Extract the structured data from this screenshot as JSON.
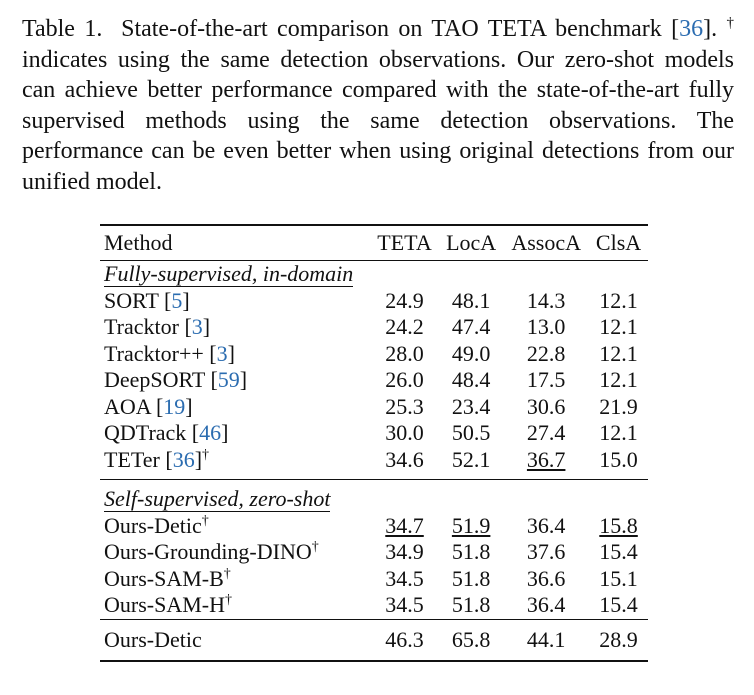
{
  "caption": {
    "label": "Table 1.",
    "text_a": "State-of-the-art comparison on TAO TETA benchmark [",
    "ref": "36",
    "text_b": "].",
    "dagger": "†",
    "text_c": "indicates using the same detection observations. Our zero-shot models can achieve better performance compared with the state-of-the-art fully supervised methods using the same detection observations. The performance can be even better when using original detections from our unified model."
  },
  "table": {
    "headers": [
      "Method",
      "TETA",
      "LocA",
      "AssocA",
      "ClsA"
    ],
    "section1": "Fully-supervised, in-domain",
    "section2": "Self-supervised, zero-shot",
    "rows": [
      {
        "name": "SORT",
        "ref": "5",
        "values": [
          "24.9",
          "48.1",
          "14.3",
          "12.1"
        ]
      },
      {
        "name": "Tracktor",
        "ref": "3",
        "values": [
          "24.2",
          "47.4",
          "13.0",
          "12.1"
        ]
      },
      {
        "name": "Tracktor++",
        "ref": "3",
        "values": [
          "28.0",
          "49.0",
          "22.8",
          "12.1"
        ]
      },
      {
        "name": "DeepSORT",
        "ref": "59",
        "values": [
          "26.0",
          "48.4",
          "17.5",
          "12.1"
        ]
      },
      {
        "name": "AOA",
        "ref": "19",
        "values": [
          "25.3",
          "23.4",
          "30.6",
          "21.9"
        ]
      },
      {
        "name": "QDTrack",
        "ref": "46",
        "values": [
          "30.0",
          "50.5",
          "27.4",
          "12.1"
        ]
      },
      {
        "name": "TETer",
        "ref": "36",
        "dagger": "†",
        "values": [
          "34.6",
          "52.1",
          "36.7",
          "15.0"
        ]
      },
      {
        "name": "Ours-Detic",
        "dagger": "†",
        "values": [
          "34.7",
          "51.9",
          "36.4",
          "15.8"
        ]
      },
      {
        "name": "Ours-Grounding-DINO",
        "dagger": "†",
        "values": [
          "34.9",
          "51.8",
          "37.6",
          "15.4"
        ]
      },
      {
        "name": "Ours-SAM-B",
        "dagger": "†",
        "values": [
          "34.5",
          "51.8",
          "36.6",
          "15.1"
        ]
      },
      {
        "name": "Ours-SAM-H",
        "dagger": "†",
        "values": [
          "34.5",
          "51.8",
          "36.4",
          "15.4"
        ]
      },
      {
        "name": "Ours-Detic",
        "values": [
          "46.3",
          "65.8",
          "44.1",
          "28.9"
        ]
      }
    ]
  }
}
